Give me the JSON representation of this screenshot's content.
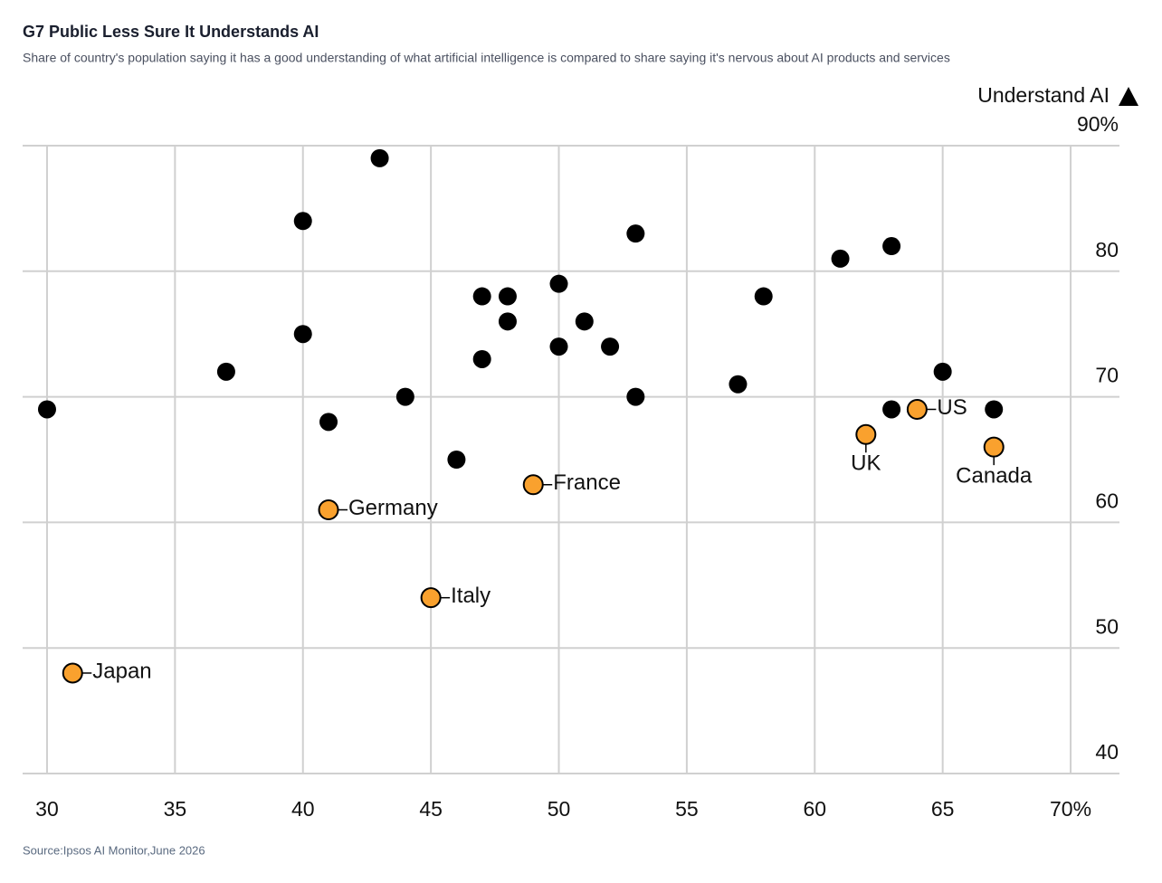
{
  "chart_data": {
    "type": "scatter",
    "title": "G7 Public Less Sure It Understands AI",
    "subtitle": "Share of country's population saying it has a good understanding of what artificial intelligence is compared to share saying it's nervous about AI products and services",
    "y_label": "Understand AI",
    "source": "Source:Ipsos AI Monitor,June 2026",
    "xlim": [
      29,
      72
    ],
    "ylim": [
      40,
      90
    ],
    "xticks": [
      30,
      35,
      40,
      45,
      50,
      55,
      60,
      65,
      {
        "value": 70,
        "label": "70%"
      }
    ],
    "yticks": [
      40,
      50,
      60,
      70,
      80,
      {
        "value": 90,
        "label": "90%"
      }
    ],
    "grid": true,
    "series": [
      {
        "color": "#000000",
        "x": [
          43,
          40,
          53,
          61,
          63,
          47,
          48,
          50,
          58,
          48,
          51,
          40,
          50,
          52,
          37,
          47,
          65,
          57,
          44,
          53,
          30,
          63,
          67,
          41,
          46
        ],
        "y": [
          89,
          84,
          83,
          81,
          82,
          78,
          78,
          79,
          78,
          76,
          76,
          75,
          74,
          74,
          72,
          73,
          72,
          71,
          70,
          70,
          69,
          69,
          69,
          68,
          65
        ]
      },
      {
        "color": "#f9a12e",
        "x": [
          31,
          41,
          45,
          49,
          62,
          64,
          67
        ],
        "y": [
          48,
          61,
          54,
          63,
          67,
          69,
          66
        ],
        "labels": [
          "Japan",
          "Germany",
          "Italy",
          "France",
          "UK",
          "US",
          "Canada"
        ]
      }
    ]
  }
}
